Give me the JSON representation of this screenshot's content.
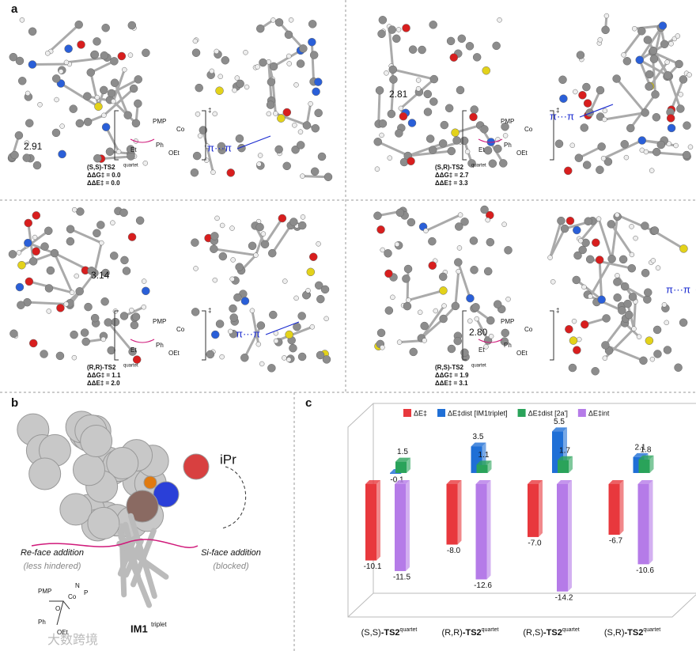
{
  "panel_a": {
    "label": "a",
    "structures": [
      {
        "distance": "2.91",
        "interaction": "π···π",
        "name": "(S,S)-TS2",
        "state": "quartet",
        "ddG": "ΔΔG‡ = 0.0",
        "ddE": "ΔΔE‡ = 0.0"
      },
      {
        "distance": "2.81",
        "interaction": "π···π",
        "name": "(S,R)-TS2",
        "state": "quartet",
        "ddG": "ΔΔG‡ = 2.7",
        "ddE": "ΔΔE‡ = 3.3"
      },
      {
        "distance": "3.14",
        "interaction": "π···π",
        "name": "(R,R)-TS2",
        "state": "quartet",
        "ddG": "ΔΔG‡ = 1.1",
        "ddE": "ΔΔE‡ = 2.0"
      },
      {
        "distance": "2.80",
        "interaction": "π···π",
        "name": "(R,S)-TS2",
        "state": "quartet",
        "ddG": "ΔΔG‡ = 1.9",
        "ddE": "ΔΔE‡ = 3.1"
      }
    ],
    "scheme": {
      "pmp": "PMP",
      "co": "Co",
      "ph": "Ph",
      "oet": "OEt",
      "et": "Et",
      "dagger": "‡"
    }
  },
  "panel_b": {
    "label": "b",
    "ipr": "iPr",
    "re_face": "Re-face addition",
    "re_note": "(less hindered)",
    "si_face": "Si-face addition",
    "si_note": "(blocked)",
    "im1": "IM1",
    "im1_state": "triplet",
    "scheme": {
      "pmp": "PMP",
      "co": "Co",
      "ph": "Ph",
      "oet": "OEt",
      "n": "N",
      "p": "P",
      "o": "O"
    }
  },
  "panel_c": {
    "label": "c"
  },
  "chart_data": {
    "type": "bar3d",
    "categories": [
      "(S,S)",
      "(R,R)",
      "(R,S)",
      "(S,R)"
    ],
    "category_suffix": "-TS2",
    "category_state": "quartet",
    "ylim": [
      -16,
      7
    ],
    "series": [
      {
        "name": "ΔE‡",
        "color": "#e8383d",
        "values": [
          -10.1,
          -8.0,
          -7.0,
          -6.7
        ],
        "value_labels": [
          "-10.1",
          "-8.0",
          "-7.0",
          "-6.7"
        ]
      },
      {
        "name": "ΔE‡dist [IM1triplet]",
        "color": "#1f6fd6",
        "values": [
          -0.1,
          3.5,
          5.5,
          2.1
        ],
        "value_labels": [
          "-0.1",
          "3.5",
          "5.5",
          "2.1"
        ]
      },
      {
        "name": "ΔE‡dist [2a']",
        "color": "#2aa35a",
        "values": [
          1.5,
          1.1,
          1.7,
          1.8
        ],
        "value_labels": [
          "1.5",
          "1.1",
          "1.7",
          "1.8"
        ]
      },
      {
        "name": "ΔE‡int",
        "color": "#b57be8",
        "values": [
          -11.5,
          -12.6,
          -14.2,
          -10.6
        ],
        "value_labels": [
          "-11.5",
          "-12.6",
          "-14.2",
          "-10.6"
        ]
      }
    ]
  },
  "watermark": "大数跨境"
}
